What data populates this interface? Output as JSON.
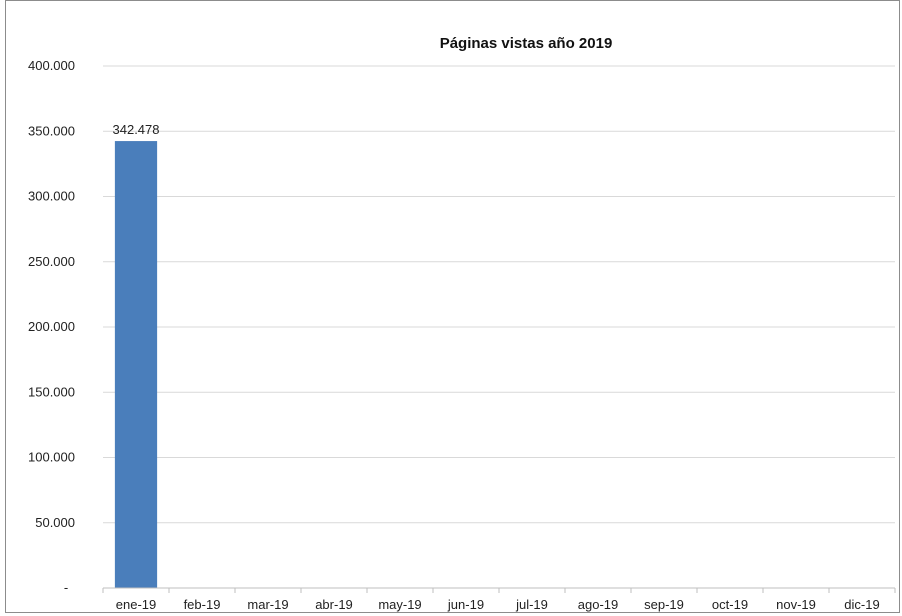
{
  "chart_data": {
    "type": "bar",
    "title": "Páginas vistas año 2019",
    "xlabel": "",
    "ylabel": "",
    "categories": [
      "ene-19",
      "feb-19",
      "mar-19",
      "abr-19",
      "may-19",
      "jun-19",
      "jul-19",
      "ago-19",
      "sep-19",
      "oct-19",
      "nov-19",
      "dic-19"
    ],
    "values": [
      342478,
      null,
      null,
      null,
      null,
      null,
      null,
      null,
      null,
      null,
      null,
      null
    ],
    "data_labels": [
      "342.478",
      "",
      "",
      "",
      "",
      "",
      "",
      "",
      "",
      "",
      "",
      ""
    ],
    "ylim": [
      0,
      400000
    ],
    "y_ticks": [
      0,
      50000,
      100000,
      150000,
      200000,
      250000,
      300000,
      350000,
      400000
    ],
    "y_tick_labels": [
      "-",
      "50.000",
      "100.000",
      "150.000",
      "200.000",
      "250.000",
      "300.000",
      "350.000",
      "400.000"
    ],
    "grid": true,
    "legend": "none",
    "colors": {
      "bar": "#4a7ebb",
      "grid": "#d9d9d9",
      "axis": "#bfbfbf"
    }
  }
}
